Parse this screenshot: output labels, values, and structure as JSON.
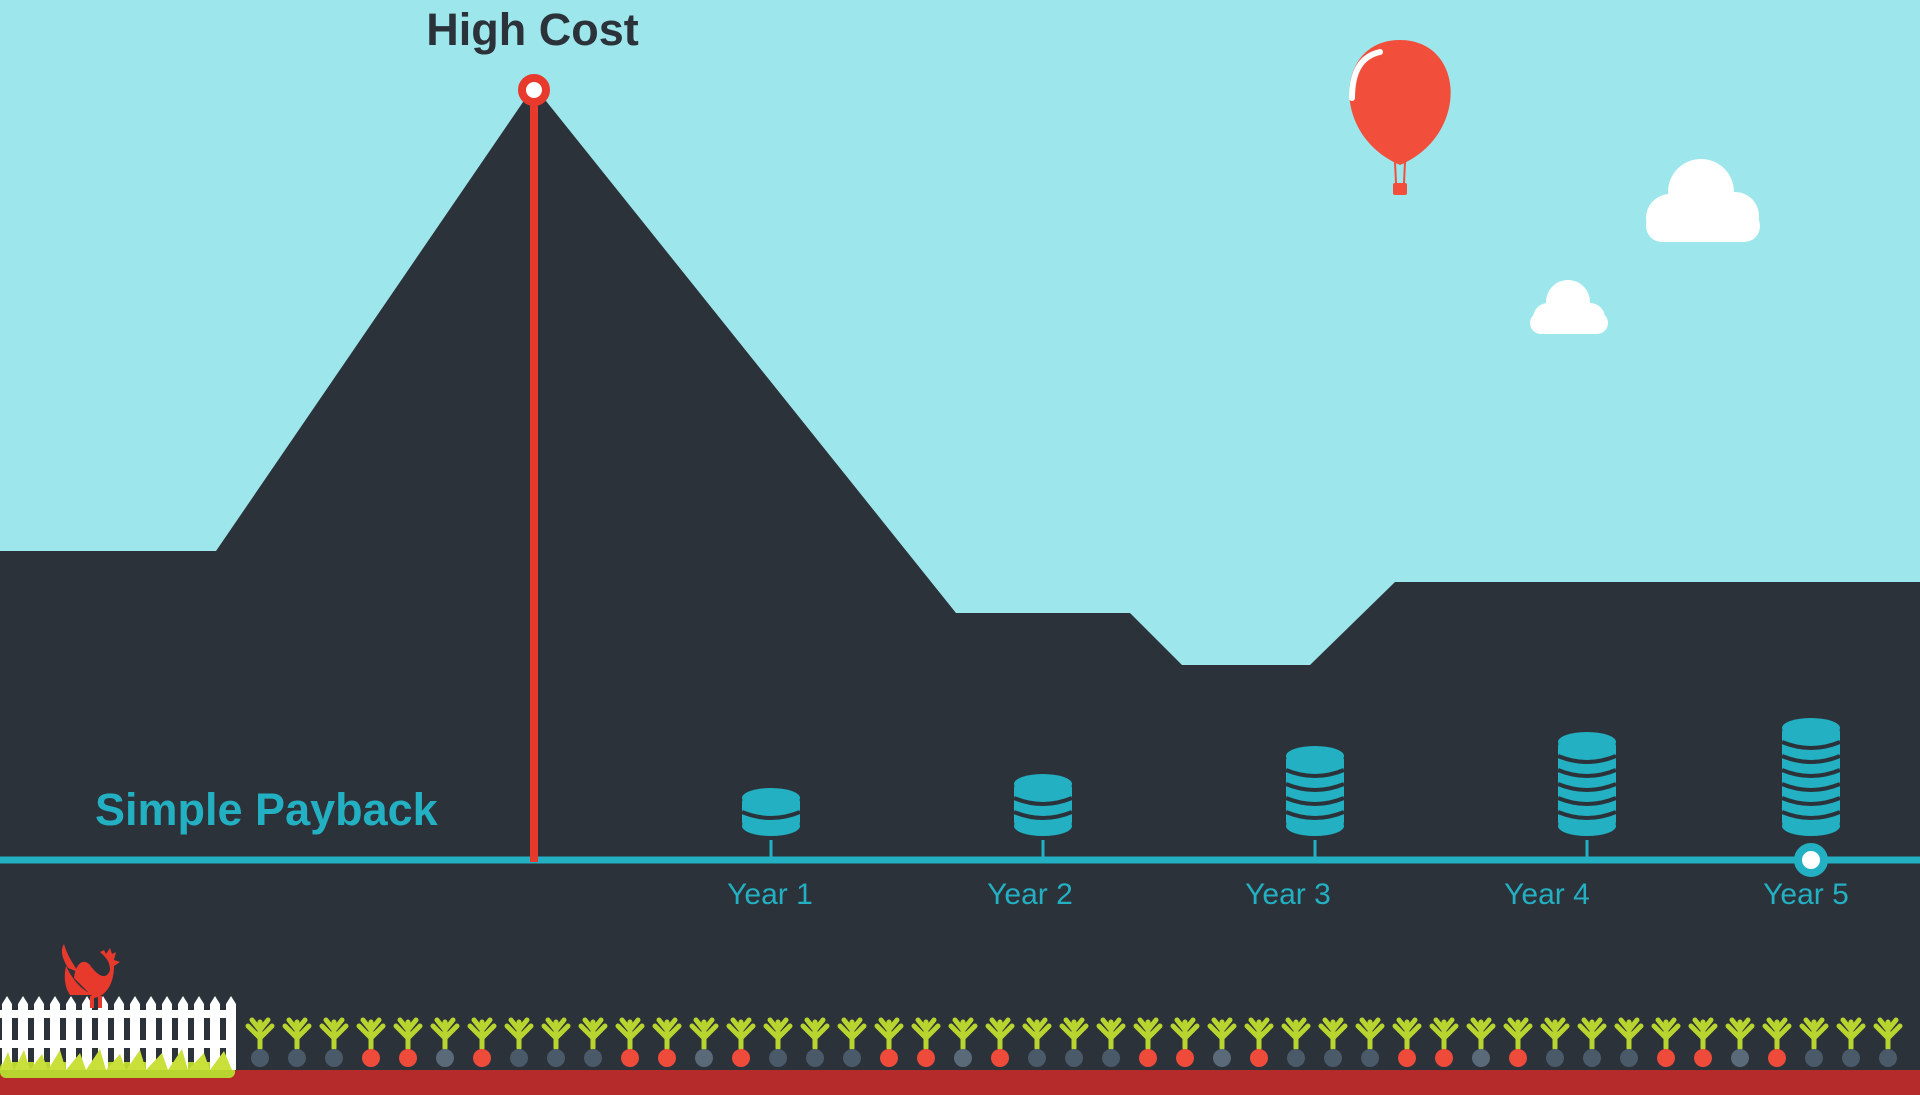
{
  "labels": {
    "high_cost": "High Cost",
    "simple_payback": "Simple Payback",
    "years": [
      "Year 1",
      "Year 2",
      "Year 3",
      "Year 4",
      "Year 5"
    ]
  },
  "coin_stacks": [
    {
      "year": "Year 1",
      "coins": 2
    },
    {
      "year": "Year 2",
      "coins": 3
    },
    {
      "year": "Year 3",
      "coins": 5
    },
    {
      "year": "Year 4",
      "coins": 6
    },
    {
      "year": "Year 5",
      "coins": 7
    }
  ],
  "highlighted_year": "Year 5",
  "colors": {
    "sky": "#9de7ec",
    "mountain": "#2c323a",
    "accent_teal": "#22b0c2",
    "accent_red": "#e8392d",
    "balloon": "#f24e3c",
    "cloud": "#ffffff",
    "soil": "#b52b2b",
    "grass": "#b8d42f"
  },
  "decorations": [
    "hot-air-balloon",
    "cloud",
    "cloud",
    "rooster",
    "picket-fence",
    "radish-row"
  ]
}
